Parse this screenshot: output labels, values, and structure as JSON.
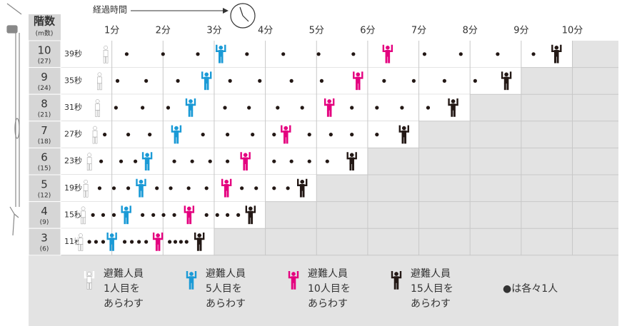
{
  "chart_data": {
    "type": "dot-timeline",
    "header_floor": "階数",
    "header_unit": "(m数)",
    "axis_label": "経過時間",
    "xlim": [
      0,
      10.9
    ],
    "xticks": [
      {
        "value": 1,
        "label": "1分"
      },
      {
        "value": 2,
        "label": "2分"
      },
      {
        "value": 3,
        "label": "3分"
      },
      {
        "value": 4,
        "label": "4分"
      },
      {
        "value": 5,
        "label": "5分"
      },
      {
        "value": 6,
        "label": "6分"
      },
      {
        "value": 7,
        "label": "7分"
      },
      {
        "value": 8,
        "label": "8分"
      },
      {
        "value": 9,
        "label": "9分"
      },
      {
        "value": 10,
        "label": "10分"
      }
    ],
    "rows": [
      {
        "floor": "10",
        "height": "(27)",
        "time_label": "39秒",
        "values": [
          0.88,
          1.29,
          2.0,
          2.68,
          3.13,
          3.64,
          4.35,
          5.04,
          5.72,
          6.39,
          7.11,
          7.82,
          8.54,
          9.24,
          9.69
        ]
      },
      {
        "floor": "9",
        "height": "(24)",
        "time_label": "35秒",
        "values": [
          0.76,
          1.11,
          1.67,
          2.29,
          2.85,
          3.31,
          3.89,
          4.51,
          5.1,
          5.81,
          6.32,
          6.9,
          7.5,
          8.1,
          8.71
        ]
      },
      {
        "floor": "8",
        "height": "(21)",
        "time_label": "31秒",
        "values": [
          0.72,
          1.08,
          1.6,
          2.1,
          2.54,
          3.21,
          3.68,
          4.24,
          4.72,
          5.25,
          5.69,
          6.18,
          6.67,
          7.18,
          7.67
        ]
      },
      {
        "floor": "7",
        "height": "(18)",
        "time_label": "27秒",
        "values": [
          0.67,
          0.86,
          1.32,
          1.74,
          2.26,
          2.78,
          3.26,
          3.75,
          4.17,
          4.4,
          4.86,
          5.28,
          5.69,
          6.18,
          6.71
        ]
      },
      {
        "floor": "6",
        "height": "(15)",
        "time_label": "23秒",
        "values": [
          0.56,
          0.79,
          1.18,
          1.46,
          1.69,
          2.22,
          2.57,
          2.92,
          3.26,
          3.61,
          4.17,
          4.51,
          4.86,
          5.21,
          5.69
        ]
      },
      {
        "floor": "5",
        "height": "(12)",
        "time_label": "19秒",
        "values": [
          0.49,
          0.76,
          1.04,
          1.32,
          1.57,
          1.88,
          2.15,
          2.5,
          2.85,
          3.24,
          3.54,
          3.82,
          4.17,
          4.44,
          4.72
        ]
      },
      {
        "floor": "4",
        "height": "(9)",
        "time_label": "15秒",
        "values": [
          0.44,
          0.63,
          0.83,
          1.04,
          1.28,
          1.6,
          1.81,
          2.01,
          2.22,
          2.51,
          2.85,
          3.06,
          3.26,
          3.47,
          3.71
        ]
      },
      {
        "floor": "3",
        "height": "(6)",
        "time_label": "11秒",
        "values": [
          0.39,
          0.56,
          0.69,
          0.83,
          1.0,
          1.25,
          1.39,
          1.53,
          1.67,
          1.9,
          2.13,
          2.24,
          2.35,
          2.46,
          2.71
        ]
      }
    ],
    "legend": [
      {
        "rank": 1,
        "color": "#ffffff",
        "lines": [
          "避難人員",
          "1人目を",
          "あらわす"
        ]
      },
      {
        "rank": 5,
        "color": "#1a9ad6",
        "lines": [
          "避難人員",
          "5人目を",
          "あらわす"
        ]
      },
      {
        "rank": 10,
        "color": "#e4007f",
        "lines": [
          "避難人員",
          "10人目を",
          "あらわす"
        ]
      },
      {
        "rank": 15,
        "color": "#231815",
        "lines": [
          "避難人員",
          "15人目を",
          "あらわす"
        ]
      }
    ],
    "dot_note": "●は各々1人",
    "dot_color": "#231815"
  }
}
